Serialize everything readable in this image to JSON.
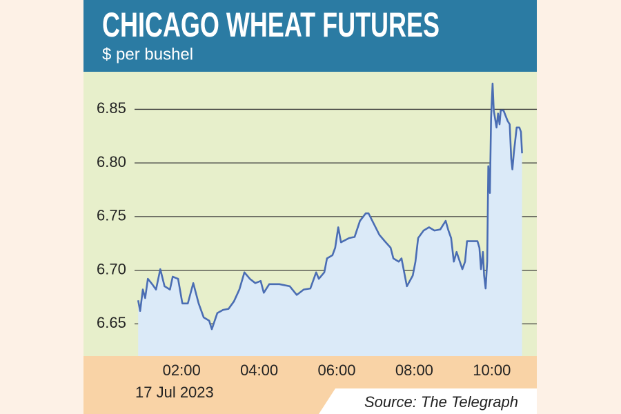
{
  "chart_data": {
    "type": "line",
    "title": "CHICAGO WHEAT FUTURES",
    "subtitle": "$ per bushel",
    "date": "17 Jul 2023",
    "source": "Source: The Telegraph",
    "color": "#4a6db3",
    "fill_color": "#dbeaf8",
    "grid": true,
    "xlim": [
      -0.53,
      11.16
    ],
    "ylim": [
      6.62,
      6.885
    ],
    "xticks": [
      {
        "value": 2,
        "label": "02:00"
      },
      {
        "value": 4,
        "label": "04:00"
      },
      {
        "value": 6,
        "label": "06:00"
      },
      {
        "value": 8,
        "label": "08:00"
      },
      {
        "value": 10,
        "label": "10:00"
      }
    ],
    "yticks": [
      {
        "value": 6.65,
        "label": "6.65"
      },
      {
        "value": 6.7,
        "label": "6.70"
      },
      {
        "value": 6.75,
        "label": "6.75"
      },
      {
        "value": 6.8,
        "label": "6.80"
      },
      {
        "value": 6.85,
        "label": "6.85"
      }
    ],
    "x": [
      0.88,
      0.93,
      1.0,
      1.06,
      1.13,
      1.24,
      1.34,
      1.45,
      1.56,
      1.7,
      1.77,
      1.91,
      2.02,
      2.16,
      2.3,
      2.44,
      2.57,
      2.71,
      2.78,
      2.92,
      3.07,
      3.21,
      3.35,
      3.49,
      3.62,
      3.76,
      3.9,
      4.04,
      4.12,
      4.26,
      4.52,
      4.79,
      4.97,
      5.15,
      5.32,
      5.47,
      5.54,
      5.68,
      5.75,
      5.89,
      5.96,
      6.04,
      6.11,
      6.32,
      6.46,
      6.6,
      6.75,
      6.82,
      6.96,
      7.1,
      7.24,
      7.39,
      7.46,
      7.6,
      7.67,
      7.74,
      7.81,
      7.96,
      8.03,
      8.1,
      8.24,
      8.38,
      8.52,
      8.67,
      8.81,
      8.88,
      8.95,
      9.02,
      9.09,
      9.24,
      9.31,
      9.36,
      9.5,
      9.63,
      9.68,
      9.72,
      9.77,
      9.8,
      9.84,
      9.88,
      9.91,
      9.95,
      9.98,
      10.02,
      10.05,
      10.12,
      10.16,
      10.2,
      10.23,
      10.3,
      10.41,
      10.46,
      10.5,
      10.53,
      10.57,
      10.64,
      10.71,
      10.75,
      10.78
    ],
    "values": [
      6.672,
      6.662,
      6.682,
      6.674,
      6.692,
      6.687,
      6.682,
      6.701,
      6.685,
      6.682,
      6.694,
      6.692,
      6.669,
      6.669,
      6.688,
      6.669,
      6.656,
      6.653,
      6.645,
      6.66,
      6.663,
      6.664,
      6.671,
      6.682,
      6.698,
      6.692,
      6.688,
      6.69,
      6.679,
      6.687,
      6.687,
      6.685,
      6.677,
      6.682,
      6.683,
      6.698,
      6.692,
      6.698,
      6.711,
      6.714,
      6.721,
      6.74,
      6.726,
      6.73,
      6.731,
      6.746,
      6.753,
      6.753,
      6.743,
      6.733,
      6.727,
      6.721,
      6.711,
      6.708,
      6.711,
      6.698,
      6.685,
      6.695,
      6.708,
      6.73,
      6.737,
      6.74,
      6.737,
      6.738,
      6.746,
      6.737,
      6.73,
      6.708,
      6.717,
      6.701,
      6.708,
      6.727,
      6.727,
      6.727,
      6.721,
      6.701,
      6.717,
      6.695,
      6.683,
      6.708,
      6.797,
      6.772,
      6.842,
      6.874,
      6.849,
      6.833,
      6.846,
      6.836,
      6.849,
      6.849,
      6.839,
      6.836,
      6.804,
      6.794,
      6.81,
      6.833,
      6.833,
      6.829,
      6.809
    ]
  }
}
